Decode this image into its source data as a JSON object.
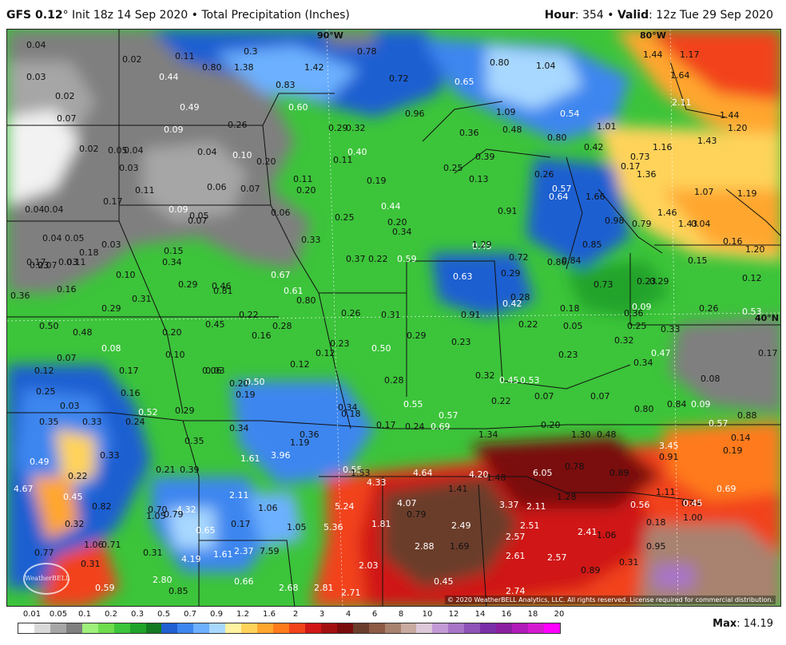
{
  "header": {
    "model": "GFS 0.12",
    "degree": "°",
    "init": " Init 18z 14 Sep 2020",
    "bullet": " • ",
    "field": "Total Precipitation (Inches)",
    "hour_label": "Hour",
    "hour_value": ": 354",
    "valid_label": "Valid",
    "valid_value": ": 12z Tue 29 Sep 2020"
  },
  "map": {
    "lon_labels": [
      "90°W",
      "80°W"
    ],
    "lat_labels": [
      "40°N"
    ],
    "credit": "© 2020 WeatherBELL Analytics, LLC. All rights reserved. License required for commercial distribution.",
    "watermark": "WeatherBELL",
    "values": [
      {
        "t": "0.04",
        "c": "d"
      },
      {
        "t": "0.02",
        "c": "d"
      },
      {
        "t": "0.11",
        "c": "d"
      },
      {
        "t": "0.3",
        "c": "d"
      },
      {
        "t": "0.78",
        "c": "d"
      },
      {
        "t": "0.80",
        "c": "d"
      },
      {
        "t": "1.04",
        "c": "d"
      },
      {
        "t": "1.44",
        "c": "d"
      },
      {
        "t": "1.17",
        "c": "d"
      },
      {
        "t": "0.03",
        "c": "d"
      },
      {
        "t": "0.80",
        "c": "d"
      },
      {
        "t": "1.38",
        "c": "d"
      },
      {
        "t": "1.42",
        "c": "d"
      },
      {
        "t": "0.72",
        "c": "d"
      },
      {
        "t": "0.44",
        "c": "w"
      },
      {
        "t": "0.83",
        "c": "d"
      },
      {
        "t": "0.65",
        "c": "w"
      },
      {
        "t": "1.64",
        "c": "d"
      },
      {
        "t": "0.02",
        "c": "d"
      },
      {
        "t": "0.49",
        "c": "w"
      },
      {
        "t": "0.60",
        "c": "w"
      },
      {
        "t": "0.96",
        "c": "d"
      },
      {
        "t": "1.09",
        "c": "d"
      },
      {
        "t": "0.54",
        "c": "w"
      },
      {
        "t": "2.11",
        "c": "w"
      },
      {
        "t": "1.44",
        "c": "d"
      },
      {
        "t": "0.07",
        "c": "d"
      },
      {
        "t": "0.09",
        "c": "w"
      },
      {
        "t": "0.26",
        "c": "d"
      },
      {
        "t": "0.29",
        "c": "d"
      },
      {
        "t": "0.32",
        "c": "d"
      },
      {
        "t": "0.36",
        "c": "d"
      },
      {
        "t": "0.48",
        "c": "d"
      },
      {
        "t": "0.80",
        "c": "d"
      },
      {
        "t": "1.01",
        "c": "d"
      },
      {
        "t": "1.20",
        "c": "d"
      },
      {
        "t": "1.43",
        "c": "d"
      },
      {
        "t": "0.02",
        "c": "d"
      },
      {
        "t": "0.05",
        "c": "d"
      },
      {
        "t": "0.04",
        "c": "d"
      },
      {
        "t": "0.04",
        "c": "d"
      },
      {
        "t": "0.10",
        "c": "w"
      },
      {
        "t": "0.11",
        "c": "d"
      },
      {
        "t": "0.40",
        "c": "w"
      },
      {
        "t": "0.39",
        "c": "d"
      },
      {
        "t": "0.42",
        "c": "d"
      },
      {
        "t": "0.73",
        "c": "d"
      },
      {
        "t": "1.16",
        "c": "d"
      },
      {
        "t": "0.03",
        "c": "d"
      },
      {
        "t": "0.20",
        "c": "d"
      },
      {
        "t": "0.25",
        "c": "d"
      },
      {
        "t": "0.13",
        "c": "d"
      },
      {
        "t": "0.26",
        "c": "d"
      },
      {
        "t": "0.17",
        "c": "d"
      },
      {
        "t": "1.36",
        "c": "d"
      },
      {
        "t": "0.11",
        "c": "d"
      },
      {
        "t": "0.06",
        "c": "d"
      },
      {
        "t": "0.07",
        "c": "d"
      },
      {
        "t": "0.11",
        "c": "d"
      },
      {
        "t": "0.20",
        "c": "d"
      },
      {
        "t": "0.19",
        "c": "d"
      },
      {
        "t": "0.44",
        "c": "w"
      },
      {
        "t": "0.57",
        "c": "w"
      },
      {
        "t": "0.64",
        "c": "w"
      },
      {
        "t": "1.66",
        "c": "d"
      },
      {
        "t": "1.07",
        "c": "d"
      },
      {
        "t": "1.19",
        "c": "d"
      },
      {
        "t": "0.04",
        "c": "d"
      },
      {
        "t": "0.04",
        "c": "d"
      },
      {
        "t": "0.17",
        "c": "d"
      },
      {
        "t": "0.05",
        "c": "d"
      },
      {
        "t": "0.09",
        "c": "w"
      },
      {
        "t": "0.07",
        "c": "d"
      },
      {
        "t": "0.06",
        "c": "d"
      },
      {
        "t": "0.25",
        "c": "d"
      },
      {
        "t": "0.20",
        "c": "d"
      },
      {
        "t": "0.34",
        "c": "d"
      },
      {
        "t": "0.91",
        "c": "d"
      },
      {
        "t": "0.98",
        "c": "d"
      },
      {
        "t": "0.79",
        "c": "d"
      },
      {
        "t": "1.46",
        "c": "d"
      },
      {
        "t": "1.43",
        "c": "d"
      },
      {
        "t": "0.04",
        "c": "d"
      },
      {
        "t": "0.04",
        "c": "d"
      },
      {
        "t": "0.05",
        "c": "d"
      },
      {
        "t": "0.03",
        "c": "d"
      },
      {
        "t": "0.23",
        "c": "d"
      },
      {
        "t": "0.33",
        "c": "d"
      },
      {
        "t": "0.45",
        "c": "w"
      },
      {
        "t": "1.29",
        "c": "d"
      },
      {
        "t": "0.85",
        "c": "d"
      },
      {
        "t": "0.16",
        "c": "d"
      },
      {
        "t": "0.03",
        "c": "d"
      },
      {
        "t": "0.07",
        "c": "d"
      },
      {
        "t": "0.11",
        "c": "d"
      },
      {
        "t": "0.18",
        "c": "d"
      },
      {
        "t": "0.15",
        "c": "d"
      },
      {
        "t": "0.34",
        "c": "d"
      },
      {
        "t": "0.37",
        "c": "d"
      },
      {
        "t": "0.22",
        "c": "d"
      },
      {
        "t": "0.59",
        "c": "w"
      },
      {
        "t": "0.72",
        "c": "d"
      },
      {
        "t": "0.86",
        "c": "d"
      },
      {
        "t": "0.84",
        "c": "d"
      },
      {
        "t": "1.20",
        "c": "d"
      },
      {
        "t": "0.15",
        "c": "d"
      },
      {
        "t": "0.17",
        "c": "d"
      },
      {
        "t": "0.10",
        "c": "d"
      },
      {
        "t": "0.67",
        "c": "w"
      },
      {
        "t": "0.63",
        "c": "w"
      },
      {
        "t": "0.29",
        "c": "d"
      },
      {
        "t": "0.12",
        "c": "d"
      },
      {
        "t": "0.16",
        "c": "d"
      },
      {
        "t": "0.36",
        "c": "d"
      },
      {
        "t": "0.29",
        "c": "d"
      },
      {
        "t": "0.46",
        "c": "d"
      },
      {
        "t": "0.61",
        "c": "w"
      },
      {
        "t": "0.73",
        "c": "d"
      },
      {
        "t": "0.23",
        "c": "d"
      },
      {
        "t": "0.29",
        "c": "d"
      },
      {
        "t": "0.81",
        "c": "d"
      },
      {
        "t": "0.80",
        "c": "d"
      },
      {
        "t": "0.29",
        "c": "d"
      },
      {
        "t": "0.31",
        "c": "d"
      },
      {
        "t": "0.26",
        "c": "d"
      },
      {
        "t": "0.31",
        "c": "d"
      },
      {
        "t": "0.28",
        "c": "d"
      },
      {
        "t": "0.42",
        "c": "w"
      },
      {
        "t": "0.18",
        "c": "d"
      },
      {
        "t": "0.09",
        "c": "w"
      },
      {
        "t": "0.26",
        "c": "d"
      },
      {
        "t": "0.53",
        "c": "w"
      },
      {
        "t": "0.50",
        "c": "d"
      },
      {
        "t": "0.45",
        "c": "d"
      },
      {
        "t": "0.22",
        "c": "d"
      },
      {
        "t": "0.91",
        "c": "d"
      },
      {
        "t": "0.36",
        "c": "d"
      },
      {
        "t": "0.48",
        "c": "d"
      },
      {
        "t": "0.16",
        "c": "d"
      },
      {
        "t": "0.28",
        "c": "d"
      },
      {
        "t": "0.22",
        "c": "d"
      },
      {
        "t": "0.05",
        "c": "d"
      },
      {
        "t": "0.25",
        "c": "d"
      },
      {
        "t": "0.33",
        "c": "d"
      },
      {
        "t": "0.08",
        "c": "w"
      },
      {
        "t": "0.20",
        "c": "d"
      },
      {
        "t": "0.23",
        "c": "d"
      },
      {
        "t": "0.50",
        "c": "w"
      },
      {
        "t": "0.29",
        "c": "d"
      },
      {
        "t": "0.23",
        "c": "d"
      },
      {
        "t": "0.32",
        "c": "d"
      },
      {
        "t": "0.47",
        "c": "w"
      },
      {
        "t": "0.07",
        "c": "d"
      },
      {
        "t": "0.10",
        "c": "d"
      },
      {
        "t": "0.12",
        "c": "d"
      },
      {
        "t": "0.12",
        "c": "d"
      },
      {
        "t": "0.23",
        "c": "d"
      },
      {
        "t": "0.03",
        "c": "d"
      },
      {
        "t": "0.34",
        "c": "d"
      },
      {
        "t": "0.17",
        "c": "d"
      },
      {
        "t": "0.12",
        "c": "d"
      },
      {
        "t": "0.17",
        "c": "d"
      },
      {
        "t": "0.06",
        "c": "d"
      },
      {
        "t": "0.08",
        "c": "d"
      },
      {
        "t": "0.50",
        "c": "w"
      },
      {
        "t": "0.20",
        "c": "d"
      },
      {
        "t": "0.28",
        "c": "d"
      },
      {
        "t": "0.32",
        "c": "d"
      },
      {
        "t": "0.45",
        "c": "w"
      },
      {
        "t": "0.53",
        "c": "w"
      },
      {
        "t": "0.25",
        "c": "d"
      },
      {
        "t": "0.16",
        "c": "d"
      },
      {
        "t": "0.19",
        "c": "d"
      },
      {
        "t": "0.55",
        "c": "w"
      },
      {
        "t": "0.22",
        "c": "d"
      },
      {
        "t": "0.07",
        "c": "d"
      },
      {
        "t": "0.07",
        "c": "d"
      },
      {
        "t": "0.84",
        "c": "d"
      },
      {
        "t": "0.09",
        "c": "w"
      },
      {
        "t": "0.03",
        "c": "d"
      },
      {
        "t": "0.52",
        "c": "w"
      },
      {
        "t": "0.29",
        "c": "d"
      },
      {
        "t": "0.34",
        "c": "d"
      },
      {
        "t": "0.18",
        "c": "d"
      },
      {
        "t": "0.57",
        "c": "w"
      },
      {
        "t": "0.80",
        "c": "d"
      },
      {
        "t": "0.88",
        "c": "d"
      },
      {
        "t": "0.35",
        "c": "d"
      },
      {
        "t": "0.33",
        "c": "d"
      },
      {
        "t": "0.24",
        "c": "d"
      },
      {
        "t": "0.34",
        "c": "d"
      },
      {
        "t": "0.17",
        "c": "d"
      },
      {
        "t": "0.24",
        "c": "d"
      },
      {
        "t": "0.69",
        "c": "w"
      },
      {
        "t": "0.20",
        "c": "d"
      },
      {
        "t": "0.57",
        "c": "w"
      },
      {
        "t": "0.35",
        "c": "d"
      },
      {
        "t": "0.36",
        "c": "d"
      },
      {
        "t": "1.19",
        "c": "d"
      },
      {
        "t": "1.34",
        "c": "d"
      },
      {
        "t": "1.30",
        "c": "d"
      },
      {
        "t": "0.48",
        "c": "d"
      },
      {
        "t": "0.14",
        "c": "d"
      },
      {
        "t": "0.49",
        "c": "w"
      },
      {
        "t": "0.33",
        "c": "d"
      },
      {
        "t": "1.61",
        "c": "w"
      },
      {
        "t": "3.96",
        "c": "w"
      },
      {
        "t": "3.45",
        "c": "w"
      },
      {
        "t": "0.91",
        "c": "d"
      },
      {
        "t": "0.19",
        "c": "d"
      },
      {
        "t": "0.22",
        "c": "d"
      },
      {
        "t": "0.21",
        "c": "d"
      },
      {
        "t": "0.39",
        "c": "d"
      },
      {
        "t": "0.55",
        "c": "w"
      },
      {
        "t": "1.53",
        "c": "d"
      },
      {
        "t": "4.64",
        "c": "w"
      },
      {
        "t": "4.20",
        "c": "w"
      },
      {
        "t": "6.05",
        "c": "w"
      },
      {
        "t": "0.78",
        "c": "d"
      },
      {
        "t": "0.89",
        "c": "d"
      },
      {
        "t": "4.67",
        "c": "w"
      },
      {
        "t": "4.33",
        "c": "w"
      },
      {
        "t": "1.41",
        "c": "d"
      },
      {
        "t": "1.48",
        "c": "d"
      },
      {
        "t": "1.11",
        "c": "d"
      },
      {
        "t": "0.44",
        "c": "d"
      },
      {
        "t": "0.69",
        "c": "w"
      },
      {
        "t": "0.45",
        "c": "w"
      },
      {
        "t": "2.11",
        "c": "w"
      },
      {
        "t": "5.24",
        "c": "w"
      },
      {
        "t": "4.07",
        "c": "w"
      },
      {
        "t": "3.37",
        "c": "w"
      },
      {
        "t": "2.11",
        "c": "w"
      },
      {
        "t": "1.28",
        "c": "d"
      },
      {
        "t": "0.56",
        "c": "w"
      },
      {
        "t": "0.45",
        "c": "w"
      },
      {
        "t": "0.82",
        "c": "d"
      },
      {
        "t": "0.70",
        "c": "d"
      },
      {
        "t": "4.32",
        "c": "w"
      },
      {
        "t": "1.06",
        "c": "d"
      },
      {
        "t": "0.79",
        "c": "d"
      },
      {
        "t": "1.05",
        "c": "d"
      },
      {
        "t": "0.32",
        "c": "d"
      },
      {
        "t": "0.79",
        "c": "d"
      },
      {
        "t": "0.65",
        "c": "w"
      },
      {
        "t": "0.17",
        "c": "d"
      },
      {
        "t": "1.05",
        "c": "d"
      },
      {
        "t": "5.36",
        "c": "w"
      },
      {
        "t": "1.81",
        "c": "w"
      },
      {
        "t": "2.49",
        "c": "w"
      },
      {
        "t": "2.51",
        "c": "w"
      },
      {
        "t": "2.41",
        "c": "w"
      },
      {
        "t": "1.06",
        "c": "d"
      },
      {
        "t": "0.18",
        "c": "d"
      },
      {
        "t": "1.00",
        "c": "d"
      },
      {
        "t": "0.77",
        "c": "d"
      },
      {
        "t": "1.06",
        "c": "d"
      },
      {
        "t": "0.71",
        "c": "d"
      },
      {
        "t": "0.31",
        "c": "d"
      },
      {
        "t": "1.61",
        "c": "w"
      },
      {
        "t": "7.59",
        "c": "d"
      },
      {
        "t": "2.57",
        "c": "w"
      },
      {
        "t": "2.88",
        "c": "w"
      },
      {
        "t": "1.69",
        "c": "d"
      },
      {
        "t": "0.95",
        "c": "d"
      },
      {
        "t": "0.31",
        "c": "d"
      },
      {
        "t": "4.19",
        "c": "w"
      },
      {
        "t": "2.37",
        "c": "w"
      },
      {
        "t": "2.03",
        "c": "w"
      },
      {
        "t": "2.61",
        "c": "w"
      },
      {
        "t": "2.57",
        "c": "w"
      },
      {
        "t": "0.89",
        "c": "d"
      },
      {
        "t": "0.31",
        "c": "d"
      },
      {
        "t": "2.80",
        "c": "w"
      },
      {
        "t": "0.66",
        "c": "w"
      },
      {
        "t": "0.45",
        "c": "w"
      },
      {
        "t": "0.59",
        "c": "w"
      },
      {
        "t": "0.85",
        "c": "d"
      },
      {
        "t": "2.68",
        "c": "w"
      },
      {
        "t": "2.81",
        "c": "w"
      },
      {
        "t": "2.71",
        "c": "w"
      },
      {
        "t": "2.74",
        "c": "w"
      }
    ]
  },
  "legend": {
    "ticks": [
      "0.01",
      "0.05",
      "0.1",
      "0.2",
      "0.3",
      "0.5",
      "0.7",
      "0.9",
      "1.2",
      "1.6",
      "2",
      "3",
      "4",
      "6",
      "8",
      "10",
      "12",
      "14",
      "16",
      "18",
      "20"
    ],
    "colors": [
      "#ffffff",
      "#d9d9d9",
      "#a6a6a6",
      "#7f7f7f",
      "#9ef07a",
      "#6ddc4d",
      "#3cc43a",
      "#20a32a",
      "#127a22",
      "#1f5fd1",
      "#3c86ef",
      "#6cb0ff",
      "#a8d8ff",
      "#fff2a0",
      "#ffd35a",
      "#ffa62e",
      "#ff7a1a",
      "#f2421a",
      "#d01616",
      "#a31010",
      "#7a0c0c",
      "#6b3d2c",
      "#8c5a45",
      "#a9826f",
      "#c8aaa0",
      "#dcc8d8",
      "#c39ad6",
      "#a874c8",
      "#8e52b8",
      "#7a2fa8",
      "#8a1ea0",
      "#b01ab8",
      "#d41ad0",
      "#ff00ff"
    ],
    "max_label": "Max",
    "max_value": ": 14.19"
  }
}
